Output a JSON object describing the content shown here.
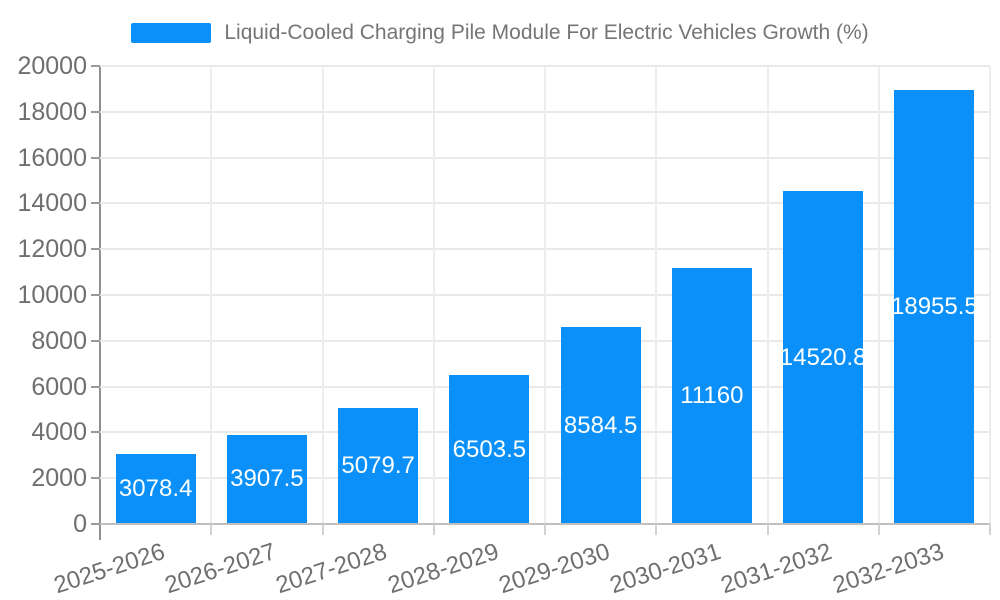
{
  "legend": {
    "label": "Liquid-Cooled Charging Pile Module For Electric Vehicles Growth (%)"
  },
  "chart_data": {
    "type": "bar",
    "title": "Liquid-Cooled Charging Pile Module For Electric Vehicles Growth (%)",
    "categories": [
      "2025-2026",
      "2026-2027",
      "2027-2028",
      "2028-2029",
      "2029-2030",
      "2030-2031",
      "2031-2032",
      "2032-2033"
    ],
    "values": [
      3078.4,
      3907.5,
      5079.7,
      6503.5,
      8584.5,
      11160,
      14520.8,
      18955.5
    ],
    "value_labels": [
      "3078.4",
      "3907.5",
      "5079.7",
      "6503.5",
      "8584.5",
      "11160",
      "14520.8",
      "18955.5"
    ],
    "xlabel": "",
    "ylabel": "",
    "ylim": [
      0,
      20000
    ],
    "ytick_interval": 2000,
    "yticks": [
      0,
      2000,
      4000,
      6000,
      8000,
      10000,
      12000,
      14000,
      16000,
      18000,
      20000
    ],
    "grid": true,
    "legend_position": "top-center",
    "x_label_rotation_deg": -18,
    "bar_color": "#0a90f8",
    "bar_label_color": "#ffffff"
  },
  "colors": {
    "bar": "#0a90f8",
    "axis_text": "#6f6f6f",
    "legend_text": "#757575",
    "grid_line": "#e9e9e9",
    "y_axis_line": "#8f8f8f",
    "x_axis_line": "#bfbfbf",
    "background": "#ffffff"
  }
}
